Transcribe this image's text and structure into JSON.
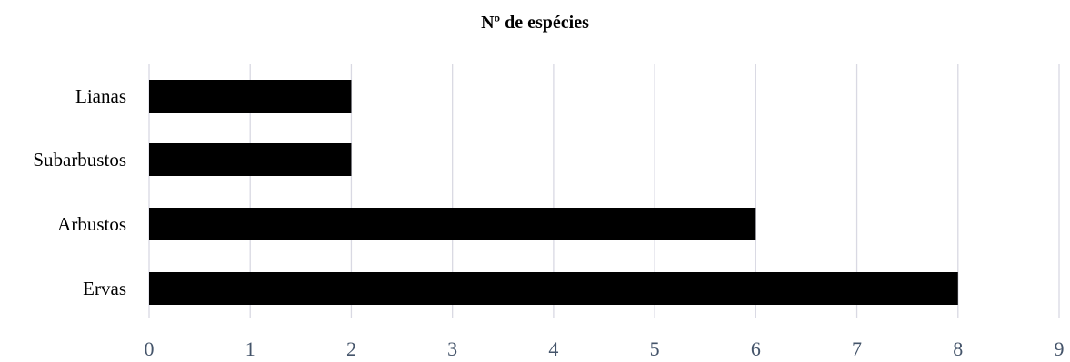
{
  "chart_data": {
    "type": "bar",
    "orientation": "horizontal",
    "title": "Nº de espécies",
    "xlabel": "",
    "ylabel": "",
    "categories": [
      "Lianas",
      "Subarbustos",
      "Arbustos",
      "Ervas"
    ],
    "values": [
      2,
      2,
      6,
      8
    ],
    "xlim": [
      0,
      9
    ],
    "xticks": [
      "0",
      "1",
      "2",
      "3",
      "4",
      "5",
      "6",
      "7",
      "8",
      "9"
    ],
    "grid": "vertical",
    "legend": "none",
    "colors": {
      "bar": "#000000",
      "grid": "#d9d9e3",
      "x_tick_label": "#44546a",
      "y_tick_label": "#000000"
    }
  }
}
